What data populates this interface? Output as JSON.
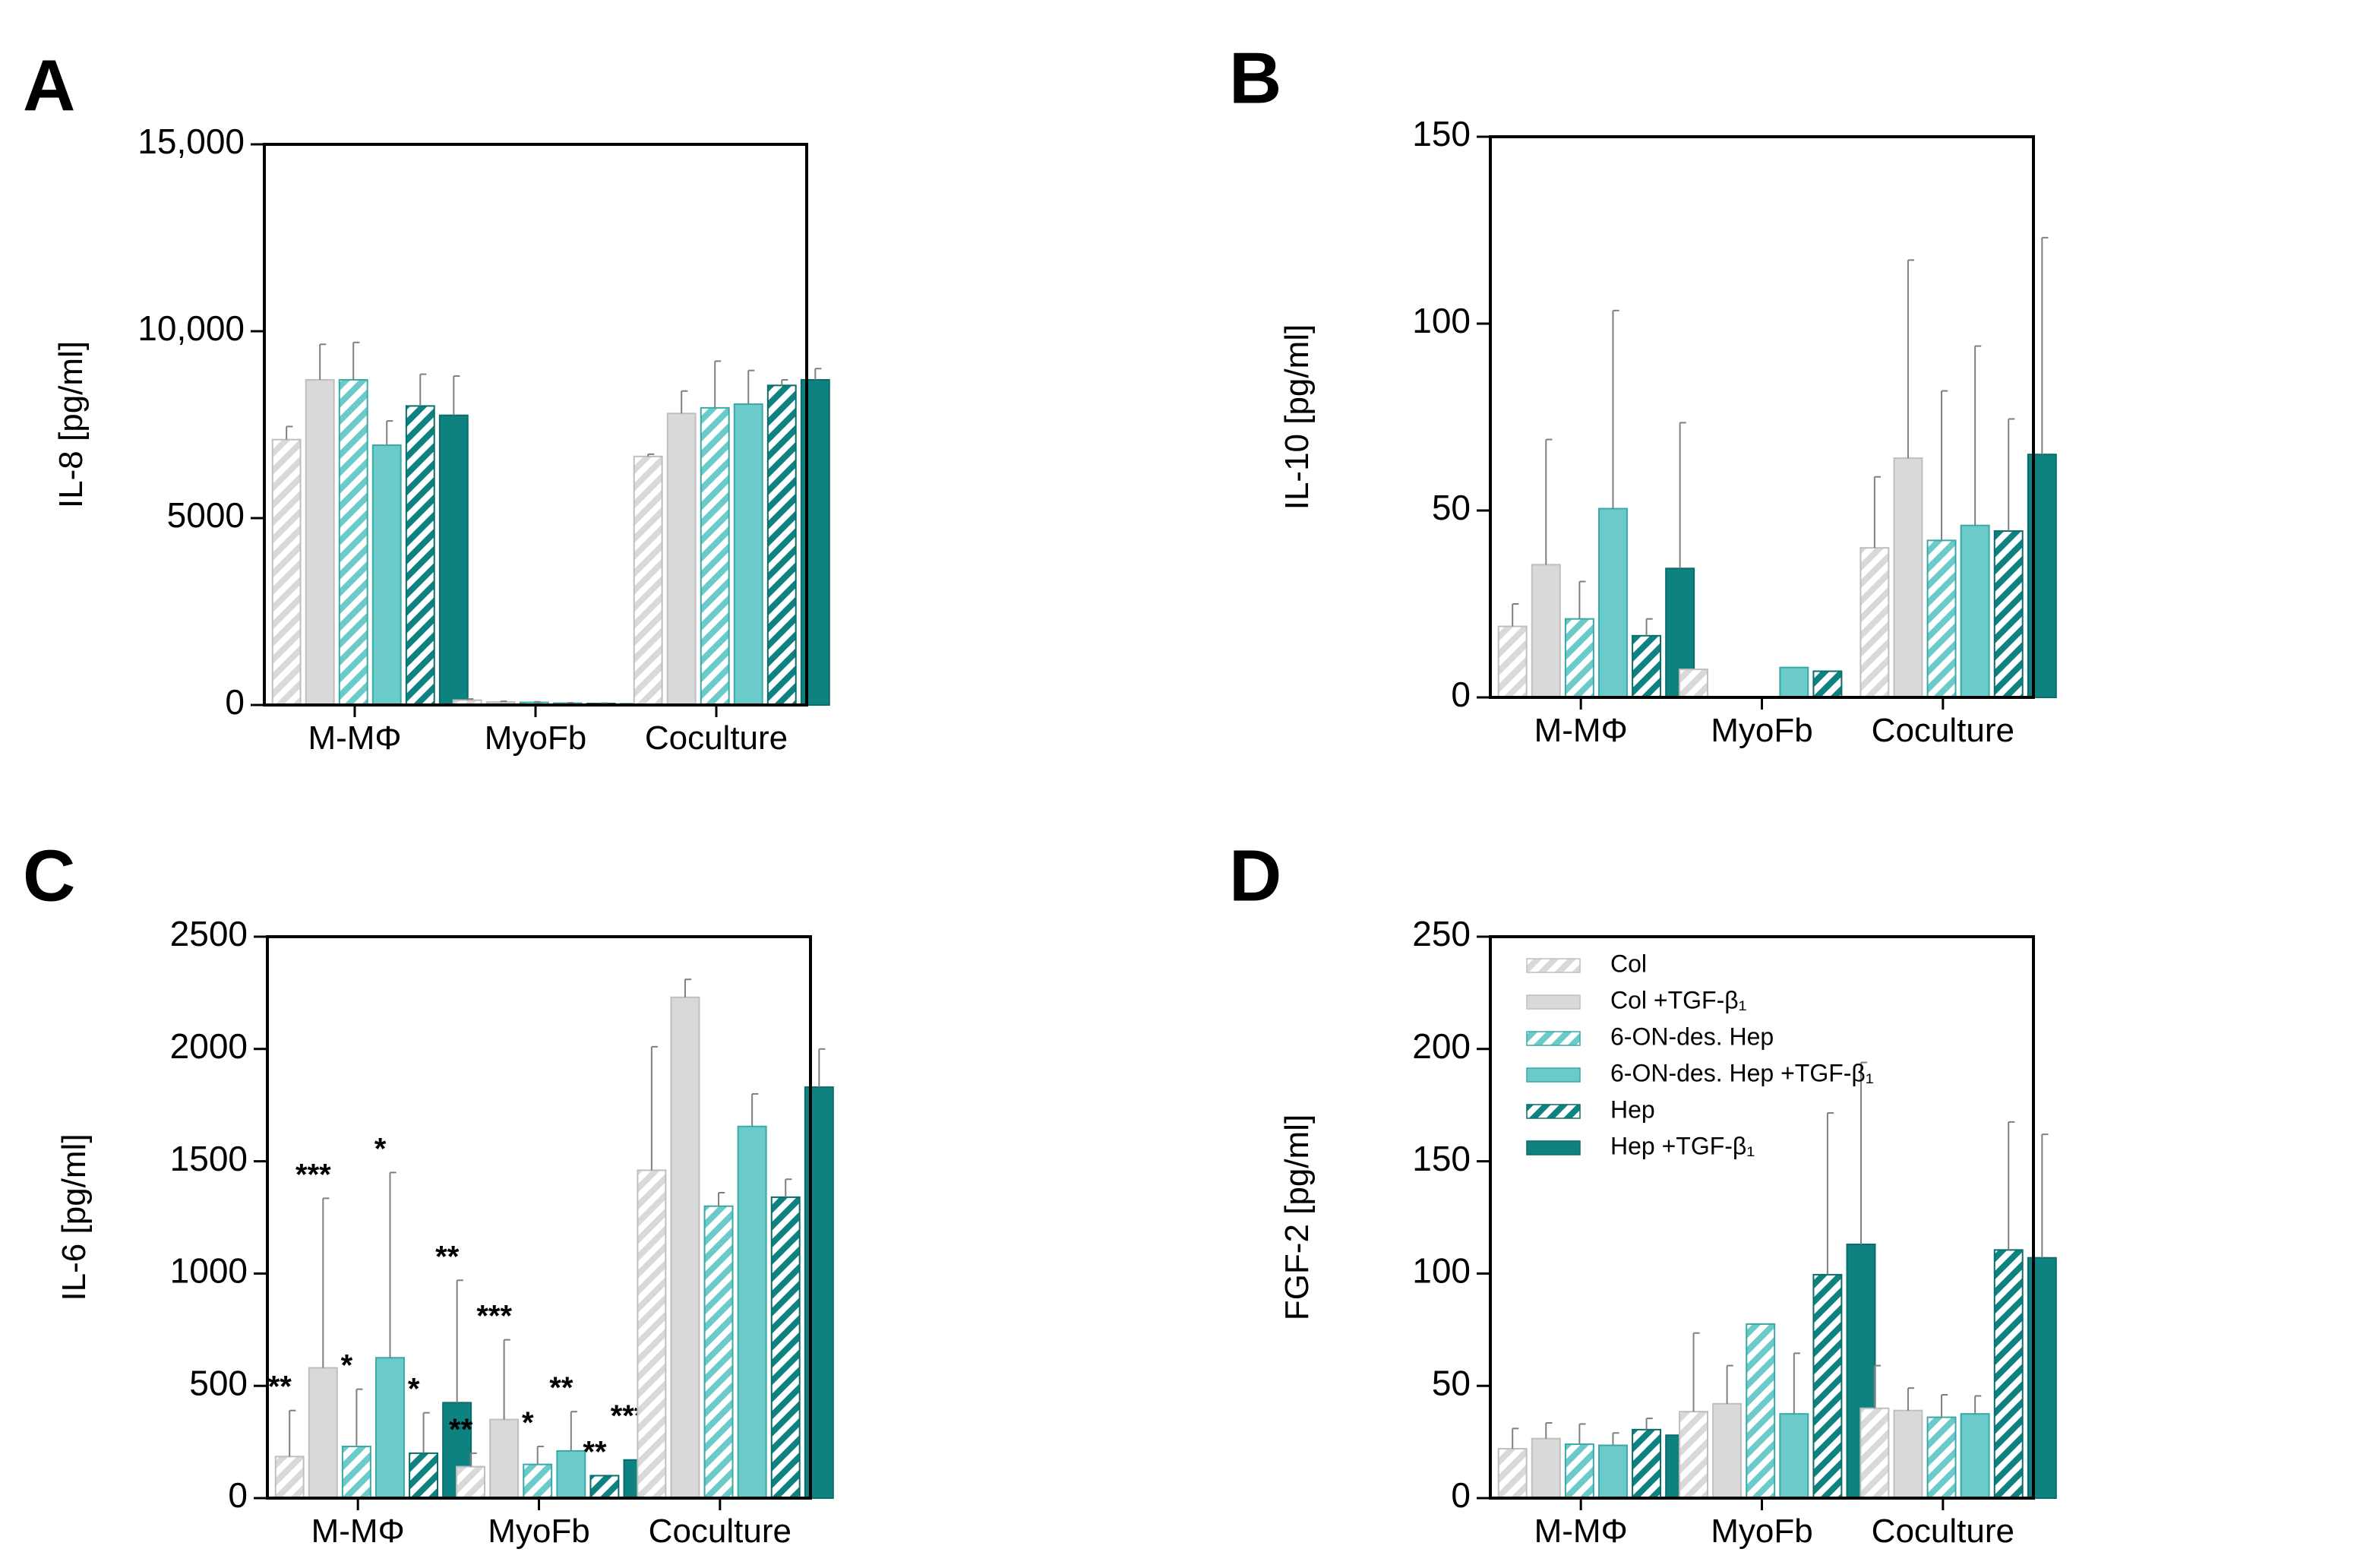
{
  "colors": {
    "col": "#d9d9d9",
    "col_edge": "#bfbfbf",
    "des": "#6acbca",
    "des_edge": "#3aa9a8",
    "hep": "#0e8281",
    "hep_edge": "#0a6c6b",
    "errorbar": "#7f7f7f"
  },
  "legend": [
    {
      "label": "Col",
      "color": "col",
      "hatched": true
    },
    {
      "label": "Col +TGF-β₁",
      "color": "col",
      "hatched": false
    },
    {
      "label": "6-ON-des. Hep",
      "color": "des",
      "hatched": true
    },
    {
      "label": "6-ON-des. Hep +TGF-β₁",
      "color": "des",
      "hatched": false
    },
    {
      "label": "Hep",
      "color": "hep",
      "hatched": true
    },
    {
      "label": "Hep +TGF-β₁",
      "color": "hep",
      "hatched": false
    }
  ],
  "chart_data": [
    {
      "panel": "A",
      "type": "bar",
      "ylabel": "IL-8 [pg/ml]",
      "ylim": [
        0,
        15000
      ],
      "yticks": [
        0,
        5000,
        10000,
        15000
      ],
      "ytick_labels": [
        "0",
        "5000",
        "10,000",
        "15,000"
      ],
      "categories": [
        "M-MΦ",
        "MyoFb",
        "Coculture"
      ],
      "series": [
        {
          "name": "Col",
          "values": [
            7100,
            130,
            6650
          ],
          "err": [
            350,
            30,
            60
          ],
          "stars": [
            "",
            "",
            ""
          ]
        },
        {
          "name": "Col +TGF-β₁",
          "values": [
            8700,
            80,
            7800
          ],
          "err": [
            950,
            20,
            600
          ],
          "stars": [
            "",
            "",
            ""
          ]
        },
        {
          "name": "6-ON-des. Hep",
          "values": [
            8700,
            70,
            7950
          ],
          "err": [
            1000,
            15,
            1250
          ],
          "stars": [
            "",
            "",
            ""
          ]
        },
        {
          "name": "6-ON-des. Hep +TGF-β₁",
          "values": [
            6950,
            50,
            8050
          ],
          "err": [
            650,
            10,
            900
          ],
          "stars": [
            "",
            "",
            ""
          ]
        },
        {
          "name": "Hep",
          "values": [
            8000,
            40,
            8550
          ],
          "err": [
            850,
            10,
            150
          ],
          "stars": [
            "",
            "",
            ""
          ]
        },
        {
          "name": "Hep +TGF-β₁",
          "values": [
            7750,
            30,
            8700
          ],
          "err": [
            1050,
            10,
            300
          ],
          "stars": [
            "",
            "",
            ""
          ]
        }
      ]
    },
    {
      "panel": "B",
      "type": "bar",
      "ylabel": "IL-10 [pg/ml]",
      "ylim": [
        0,
        150
      ],
      "yticks": [
        0,
        50,
        100,
        150
      ],
      "ytick_labels": [
        "0",
        "50",
        "100",
        "150"
      ],
      "categories": [
        "M-MΦ",
        "MyoFb",
        "Coculture"
      ],
      "series": [
        {
          "name": "Col",
          "values": [
            19,
            7.5,
            40
          ],
          "err": [
            6,
            0,
            19
          ],
          "stars": [
            "",
            "",
            ""
          ]
        },
        {
          "name": "Col +TGF-β₁",
          "values": [
            35.5,
            0,
            64
          ],
          "err": [
            33.5,
            0,
            53
          ],
          "stars": [
            "",
            "",
            ""
          ]
        },
        {
          "name": "6-ON-des. Hep",
          "values": [
            21,
            0,
            42
          ],
          "err": [
            10,
            0,
            40
          ],
          "stars": [
            "",
            "",
            ""
          ]
        },
        {
          "name": "6-ON-des. Hep +TGF-β₁",
          "values": [
            50.5,
            8,
            46
          ],
          "err": [
            53,
            0,
            48
          ],
          "stars": [
            "",
            "",
            ""
          ]
        },
        {
          "name": "Hep",
          "values": [
            16.5,
            7,
            44.5
          ],
          "err": [
            4.5,
            0,
            30
          ],
          "stars": [
            "",
            "",
            ""
          ]
        },
        {
          "name": "Hep +TGF-β₁",
          "values": [
            34.5,
            0,
            65
          ],
          "err": [
            39,
            0,
            58
          ],
          "stars": [
            "",
            "",
            ""
          ]
        }
      ]
    },
    {
      "panel": "C",
      "type": "bar",
      "ylabel": "IL-6 [pg/ml]",
      "ylim": [
        0,
        2500
      ],
      "yticks": [
        0,
        500,
        1000,
        1500,
        2000,
        2500
      ],
      "ytick_labels": [
        "0",
        "500",
        "1000",
        "1500",
        "2000",
        "2500"
      ],
      "categories": [
        "M-MΦ",
        "MyoFb",
        "Coculture"
      ],
      "series": [
        {
          "name": "Col",
          "values": [
            185,
            140,
            1460
          ],
          "err": [
            205,
            60,
            550
          ],
          "stars": [
            "**",
            "**",
            ""
          ]
        },
        {
          "name": "Col +TGF-β₁",
          "values": [
            580,
            350,
            2230
          ],
          "err": [
            755,
            355,
            80
          ],
          "stars": [
            "***",
            "***",
            ""
          ]
        },
        {
          "name": "6-ON-des. Hep",
          "values": [
            230,
            150,
            1300
          ],
          "err": [
            255,
            80,
            60
          ],
          "stars": [
            "*",
            "*",
            ""
          ]
        },
        {
          "name": "6-ON-des. Hep +TGF-β₁",
          "values": [
            625,
            210,
            1655
          ],
          "err": [
            825,
            175,
            145
          ],
          "stars": [
            "*",
            "**",
            ""
          ]
        },
        {
          "name": "Hep",
          "values": [
            200,
            100,
            1340
          ],
          "err": [
            180,
            0,
            80
          ],
          "stars": [
            "*",
            "**",
            ""
          ]
        },
        {
          "name": "Hep +TGF-β₁",
          "values": [
            425,
            170,
            1830
          ],
          "err": [
            545,
            90,
            170
          ],
          "stars": [
            "**",
            "***",
            ""
          ]
        }
      ]
    },
    {
      "panel": "D",
      "type": "bar",
      "ylabel": "FGF-2 [pg/ml]",
      "ylim": [
        0,
        250
      ],
      "yticks": [
        0,
        50,
        100,
        150,
        200,
        250
      ],
      "ytick_labels": [
        "0",
        "50",
        "100",
        "150",
        "200",
        "250"
      ],
      "categories": [
        "M-MΦ",
        "MyoFb",
        "Coculture"
      ],
      "legend_position": "top-left",
      "series": [
        {
          "name": "Col",
          "values": [
            22,
            38.5,
            40
          ],
          "err": [
            9,
            35,
            19
          ],
          "stars": [
            "",
            "",
            ""
          ]
        },
        {
          "name": "Col +TGF-β₁",
          "values": [
            26.5,
            42,
            39
          ],
          "err": [
            7,
            17,
            10
          ],
          "stars": [
            "",
            "",
            ""
          ]
        },
        {
          "name": "6-ON-des. Hep",
          "values": [
            24,
            77.5,
            36
          ],
          "err": [
            9,
            0,
            10
          ],
          "stars": [
            "",
            "",
            ""
          ]
        },
        {
          "name": "6-ON-des. Hep +TGF-β₁",
          "values": [
            23.5,
            37.5,
            37.5
          ],
          "err": [
            5.5,
            27,
            8
          ],
          "stars": [
            "",
            "",
            ""
          ]
        },
        {
          "name": "Hep",
          "values": [
            30.5,
            99.5,
            110.5
          ],
          "err": [
            5,
            72,
            57
          ],
          "stars": [
            "",
            "",
            ""
          ]
        },
        {
          "name": "Hep +TGF-β₁",
          "values": [
            28,
            113,
            107
          ],
          "err": [
            6,
            81,
            55
          ],
          "stars": [
            "",
            "",
            ""
          ]
        }
      ]
    }
  ]
}
